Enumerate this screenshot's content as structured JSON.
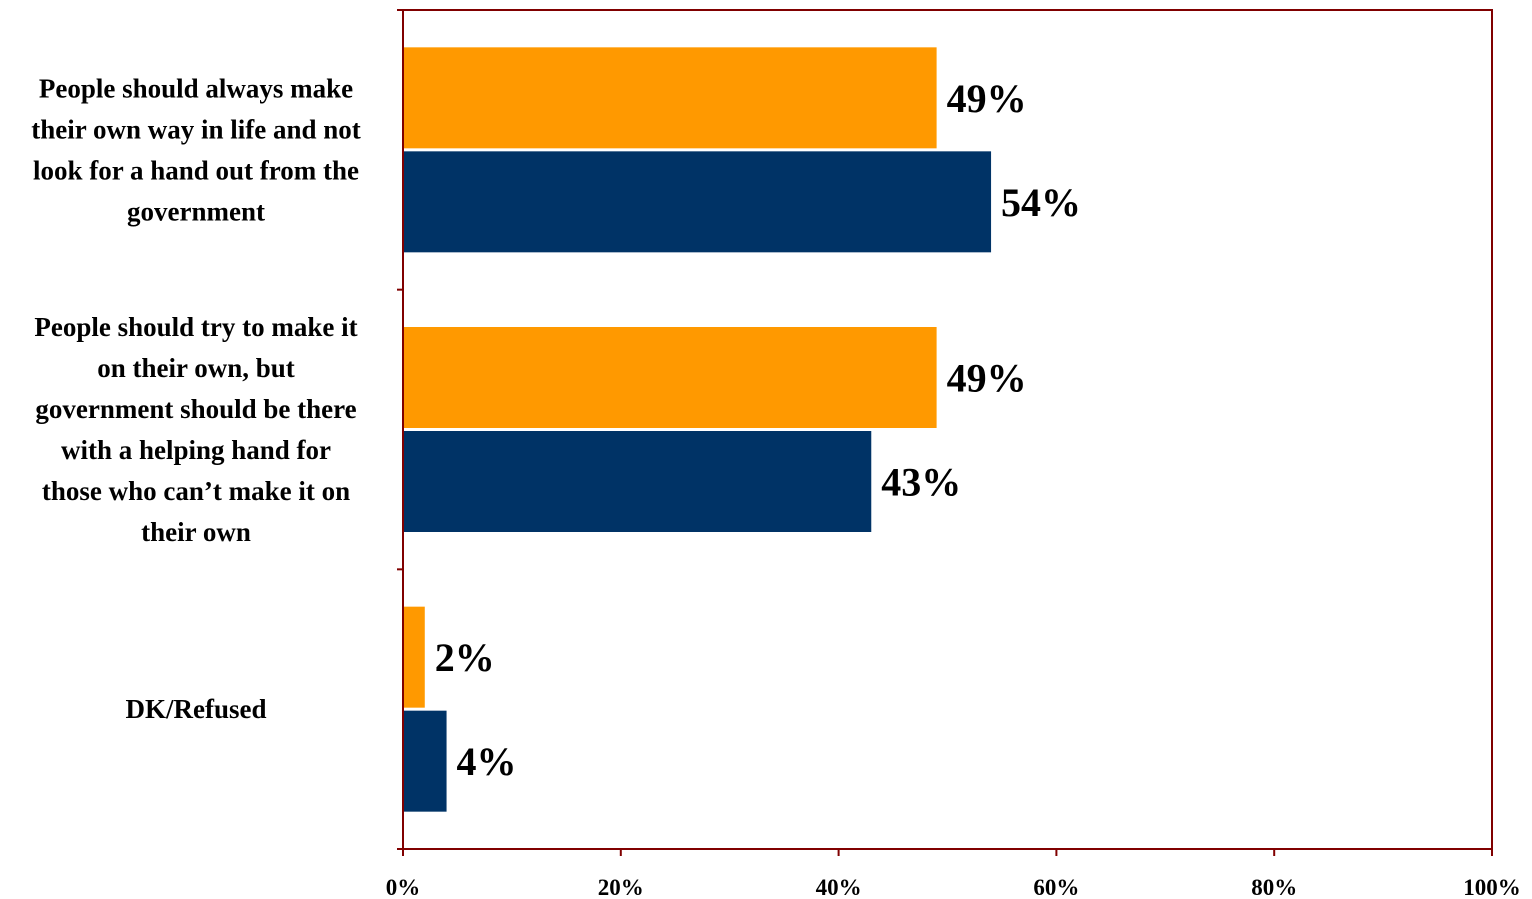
{
  "chart_data": {
    "type": "bar",
    "orientation": "horizontal",
    "categories": [
      "People should always make their own way in life and not look for a hand out from the government",
      "People should try to make it on their own, but government should be there with a helping hand for those who can’t make it on their own",
      "DK/Refused"
    ],
    "category_lines": [
      [
        "People should always make",
        "their own way in life and not",
        "look for a hand out from the",
        "government"
      ],
      [
        "People should try to make it",
        "on their own, but",
        "government should be there",
        "with a helping hand for",
        "those who can’t make it on",
        "their own"
      ],
      [
        "DK/Refused"
      ]
    ],
    "series": [
      {
        "values": [
          49,
          49,
          2
        ],
        "color": "#FF9900"
      },
      {
        "values": [
          54,
          43,
          4
        ],
        "color": "#003366"
      }
    ],
    "value_format": "{v}%",
    "xlim": [
      0,
      100
    ],
    "xticks": [
      0,
      20,
      40,
      60,
      80,
      100
    ],
    "xtick_labels": [
      "0%",
      "20%",
      "40%",
      "60%",
      "80%",
      "100%"
    ],
    "title": "",
    "xlabel": "",
    "ylabel": "",
    "grid": false,
    "legend": "none",
    "axis_color": "#800000"
  }
}
